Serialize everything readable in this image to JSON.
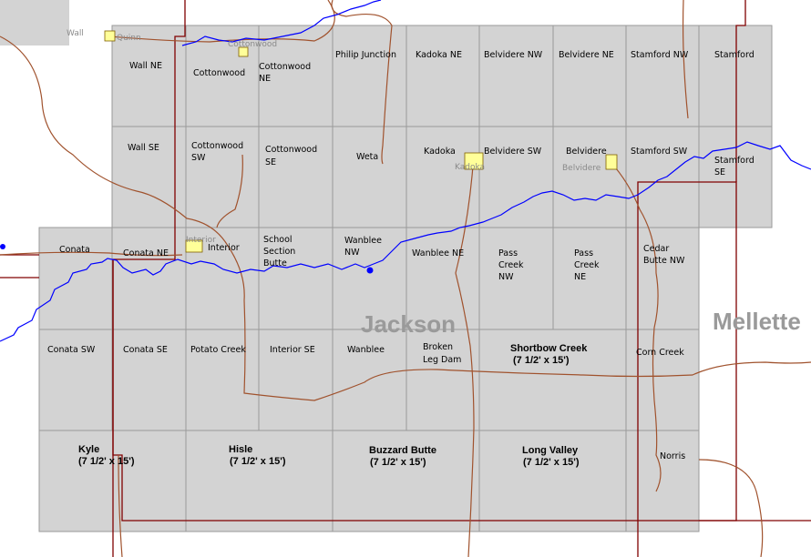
{
  "colors": {
    "quad_fill": "#d3d3d3",
    "quad_border": "#9a9a9a",
    "road": "#a0522d",
    "river": "#0000ff",
    "county_line": "#800000",
    "town_fill": "#ffff99"
  },
  "county_labels": [
    "Jackson",
    "Mellette"
  ],
  "quads": [
    "Wall NE",
    "Cottonwood",
    "Cottonwood NE",
    "Philip Junction",
    "Kadoka NE",
    "Belvidere NW",
    "Belvidere NE",
    "Stamford NW",
    "Stamford",
    "Wall SE",
    "Cottonwood SW",
    "Cottonwood SE",
    "Weta",
    "Kadoka",
    "Belvidere SW",
    "Belvidere",
    "Stamford SW",
    "Stamford SE",
    "Conata",
    "Conata NE",
    "Interior",
    "School Section Butte",
    "Wanblee NW",
    "Wanblee NE",
    "Pass Creek NW",
    "Pass Creek NE",
    "Cedar Butte NW",
    "Conata SW",
    "Conata SE",
    "Potato Creek",
    "Interior SE",
    "Wanblee",
    "Broken Leg Dam",
    "Corn Creek",
    "Norris"
  ],
  "large_quads": [
    {
      "name": "Shortbow Creek",
      "scale": "(7 1/2' x 15')"
    },
    {
      "name": "Kyle",
      "scale": "(7 1/2' x 15')"
    },
    {
      "name": "Hisle",
      "scale": "(7 1/2' x 15')"
    },
    {
      "name": "Buzzard Butte",
      "scale": "(7 1/2' x 15')"
    },
    {
      "name": "Long Valley",
      "scale": "(7 1/2' x 15')"
    }
  ],
  "towns": [
    "Wall",
    "Quinn",
    "Cottonwood",
    "Kadoka",
    "Belvidere",
    "Interior"
  ]
}
